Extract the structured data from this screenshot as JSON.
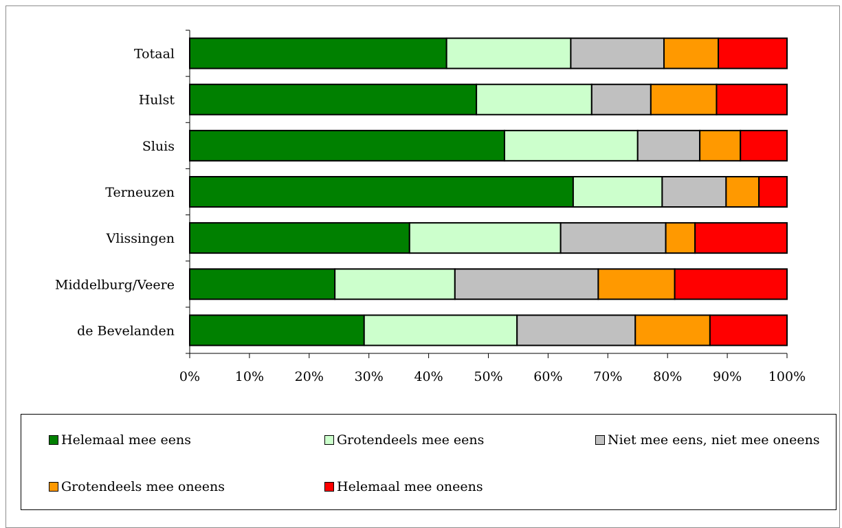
{
  "chart_data": {
    "type": "bar",
    "orientation": "horizontal",
    "stacked": "percent",
    "categories": [
      "Totaal",
      "Hulst",
      "Sluis",
      "Terneuzen",
      "Vlissingen",
      "Middelburg/Veere",
      "de Bevelanden"
    ],
    "series": [
      {
        "name": "Helemaal mee eens",
        "color": "#008000",
        "values": [
          43,
          48,
          52.7,
          64.2,
          36.8,
          24.3,
          29.2
        ]
      },
      {
        "name": "Grotendeels mee eens",
        "color": "#ccffcc",
        "values": [
          20.8,
          19.3,
          22.3,
          14.9,
          25.3,
          20.1,
          25.6
        ]
      },
      {
        "name": "Niet mee eens, niet mee oneens",
        "color": "#c0c0c0",
        "values": [
          15.6,
          9.9,
          10.4,
          10.7,
          17.6,
          24,
          19.8
        ]
      },
      {
        "name": "Grotendeels mee oneens",
        "color": "#ff9900",
        "values": [
          9.1,
          11,
          6.8,
          5.5,
          4.9,
          12.8,
          12.5
        ]
      },
      {
        "name": "Helemaal mee oneens",
        "color": "#ff0000",
        "values": [
          11.5,
          11.8,
          7.8,
          4.7,
          15.4,
          18.8,
          12.9
        ]
      }
    ],
    "xaxis": {
      "ticks": [
        "0%",
        "10%",
        "20%",
        "30%",
        "40%",
        "50%",
        "60%",
        "70%",
        "80%",
        "90%",
        "100%"
      ],
      "range": [
        0,
        100
      ]
    },
    "grid": false,
    "legend_position": "bottom"
  }
}
